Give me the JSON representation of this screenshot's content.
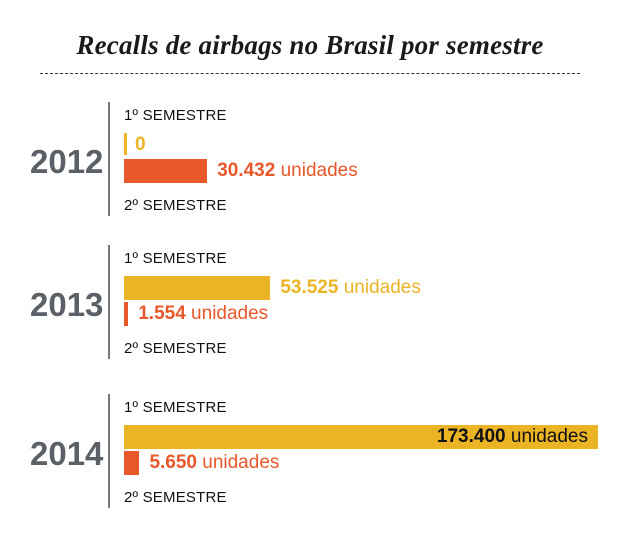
{
  "title": "Recalls de airbags no Brasil por semestre",
  "labels": {
    "sem1": "1º SEMESTRE",
    "sem2": "2º SEMESTRE",
    "unit": "unidades"
  },
  "colors": {
    "sem1": "#ebb425",
    "sem2": "#e8582a",
    "year": "#5a6066"
  },
  "chart_data": {
    "type": "bar",
    "orientation": "horizontal",
    "title": "Recalls de airbags no Brasil por semestre",
    "categories": [
      "2012",
      "2013",
      "2014"
    ],
    "series": [
      {
        "name": "1º SEMESTRE",
        "values": [
          0,
          53525,
          173400
        ],
        "labels": [
          "0",
          "53.525",
          "173.400"
        ]
      },
      {
        "name": "2º SEMESTRE",
        "values": [
          30432,
          1554,
          5650
        ],
        "labels": [
          "30.432",
          "1.554",
          "5.650"
        ]
      }
    ],
    "xlim": [
      0,
      173400
    ],
    "grid": false
  }
}
